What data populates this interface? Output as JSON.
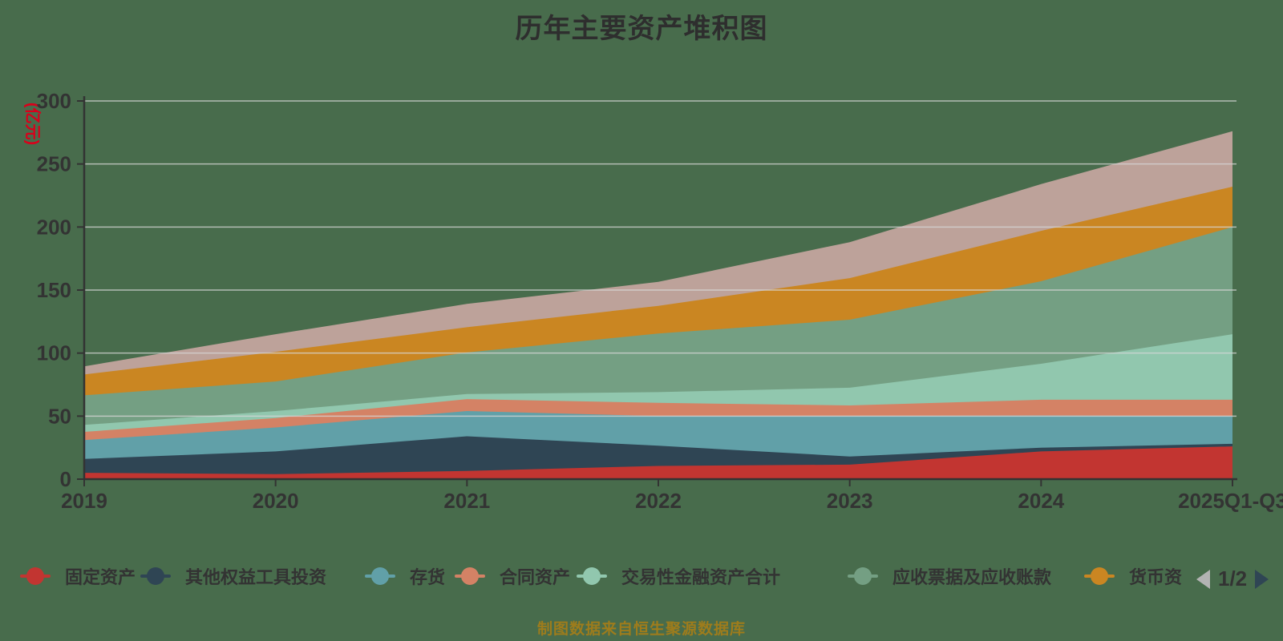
{
  "title": "历年主要资产堆积图",
  "caption": "制图数据来自恒生聚源数据库",
  "y_axis": {
    "unit": "(亿元)",
    "ticks": [
      0,
      50,
      100,
      150,
      200,
      250,
      300
    ]
  },
  "legend": {
    "page_indicator": "1/2",
    "items": [
      {
        "label": "固定资产",
        "color": "#c23531"
      },
      {
        "label": "其他权益工具投资",
        "color": "#2f4554"
      },
      {
        "label": "存货",
        "color": "#61a0a8"
      },
      {
        "label": "合同资产",
        "color": "#d48265"
      },
      {
        "label": "交易性金融资产合计",
        "color": "#91c7ae"
      },
      {
        "label": "应收票据及应收账款",
        "color": "#749f83"
      },
      {
        "label": "货币资",
        "color": "#ca8622"
      }
    ]
  },
  "chart_data": {
    "type": "area",
    "stacked": true,
    "title": "历年主要资产堆积图",
    "ylabel": "(亿元)",
    "ylim": [
      0,
      300
    ],
    "grid": true,
    "legend_position": "bottom",
    "categories": [
      "2019",
      "2020",
      "2021",
      "2022",
      "2023",
      "2024",
      "2025Q1-Q3"
    ],
    "series": [
      {
        "name": "固定资产",
        "color": "#c23531",
        "values": [
          5,
          4,
          6.5,
          10.5,
          11.5,
          22,
          26
        ]
      },
      {
        "name": "其他权益工具投资",
        "color": "#2f4554",
        "values": [
          11,
          18,
          27.5,
          16,
          6.5,
          3,
          2
        ]
      },
      {
        "name": "存货",
        "color": "#61a0a8",
        "values": [
          15,
          19,
          20,
          23.5,
          32,
          25.5,
          22
        ]
      },
      {
        "name": "合同资产",
        "color": "#d48265",
        "values": [
          6.5,
          7.5,
          9.5,
          10.5,
          8.5,
          12.5,
          13
        ]
      },
      {
        "name": "交易性金融资产合计",
        "color": "#91c7ae",
        "values": [
          5.5,
          5.5,
          4,
          8.5,
          14,
          28.5,
          52
        ]
      },
      {
        "name": "应收票据及应收账款",
        "color": "#749f83",
        "values": [
          23.5,
          23.5,
          33,
          46.5,
          54,
          65.5,
          85
        ]
      },
      {
        "name": "货币资",
        "color": "#ca8622",
        "values": [
          16.5,
          23.5,
          20,
          22,
          33,
          40,
          32
        ]
      },
      {
        "name": "",
        "color": "#bda29a",
        "values": [
          6.5,
          14,
          18.5,
          19,
          28.5,
          37,
          44
        ]
      }
    ]
  }
}
